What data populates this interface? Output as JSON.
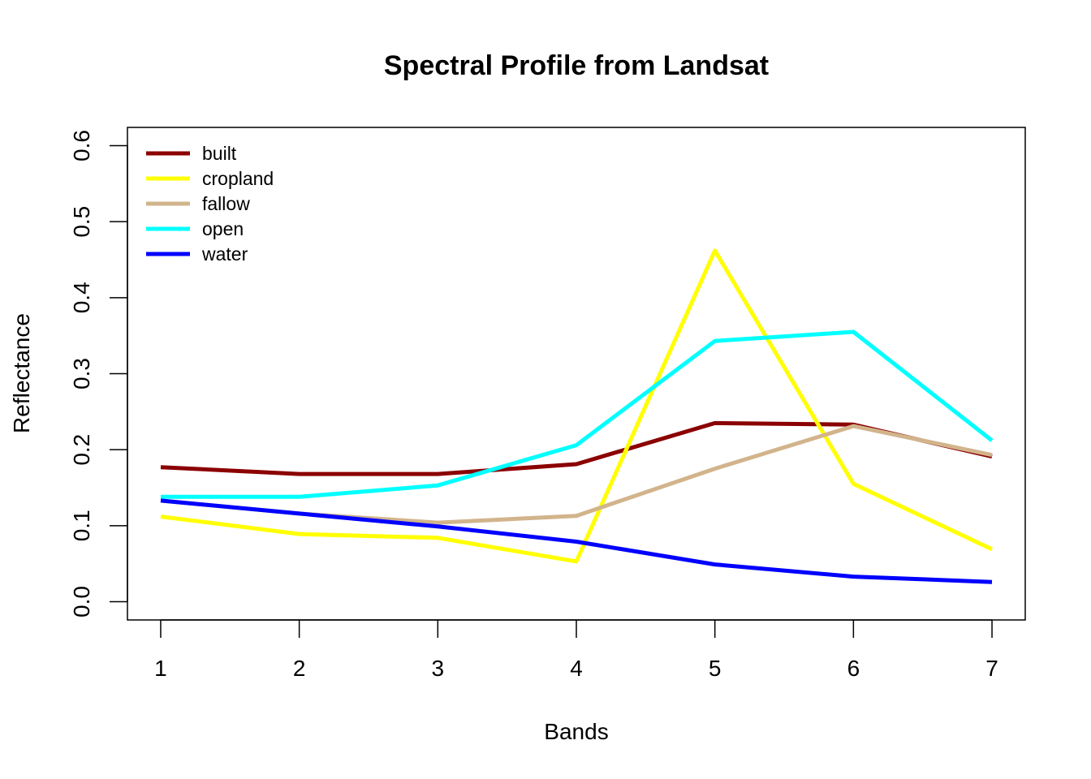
{
  "chart_data": {
    "type": "line",
    "title": "Spectral Profile from Landsat",
    "xlabel": "Bands",
    "ylabel": "Reflectance",
    "x": [
      1,
      2,
      3,
      4,
      5,
      6,
      7
    ],
    "x_tick_labels": [
      "1",
      "2",
      "3",
      "4",
      "5",
      "6",
      "7"
    ],
    "y_tick_labels": [
      "0.0",
      "0.1",
      "0.2",
      "0.3",
      "0.4",
      "0.5",
      "0.6"
    ],
    "xlim": [
      0.76,
      7.24
    ],
    "ylim": [
      -0.024,
      0.624
    ],
    "grid": false,
    "legend_position": "top-left",
    "series": [
      {
        "name": "built",
        "color": "#8B0000",
        "values": [
          0.177,
          0.168,
          0.168,
          0.181,
          0.235,
          0.233,
          0.191
        ]
      },
      {
        "name": "cropland",
        "color": "#FFFF00",
        "values": [
          0.112,
          0.089,
          0.084,
          0.053,
          0.462,
          0.155,
          0.069
        ]
      },
      {
        "name": "fallow",
        "color": "#D2B48C",
        "values": [
          0.133,
          0.116,
          0.104,
          0.113,
          0.175,
          0.231,
          0.193
        ]
      },
      {
        "name": "open",
        "color": "#00FFFF",
        "values": [
          0.138,
          0.138,
          0.153,
          0.206,
          0.343,
          0.355,
          0.212
        ]
      },
      {
        "name": "water",
        "color": "#0000FF",
        "values": [
          0.133,
          0.116,
          0.099,
          0.079,
          0.049,
          0.033,
          0.026
        ]
      }
    ]
  }
}
